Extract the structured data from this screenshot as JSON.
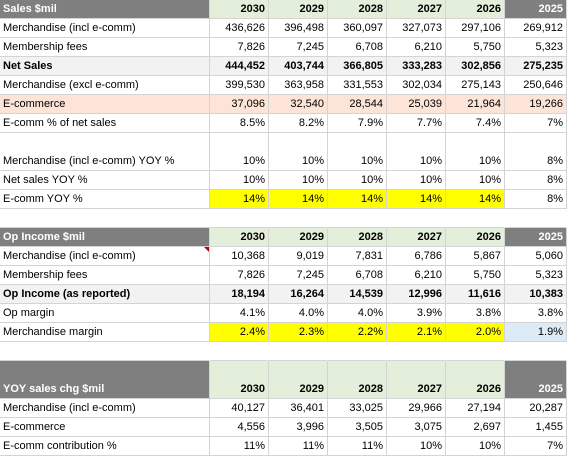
{
  "sales": {
    "header": [
      "Sales $mil",
      "2030",
      "2029",
      "2028",
      "2027",
      "2026",
      "2025"
    ],
    "rows": [
      [
        "Merchandise (incl e-comm)",
        "436,626",
        "396,498",
        "360,097",
        "327,073",
        "297,106",
        "269,912"
      ],
      [
        "Membership fees",
        "7,826",
        "7,245",
        "6,708",
        "6,210",
        "5,750",
        "5,323"
      ],
      [
        "Net Sales",
        "444,452",
        "403,744",
        "366,805",
        "333,283",
        "302,856",
        "275,235"
      ],
      [
        "Merchandise (excl e-comm)",
        "399,530",
        "363,958",
        "331,553",
        "302,034",
        "275,143",
        "250,646"
      ],
      [
        "E-commerce",
        "37,096",
        "32,540",
        "28,544",
        "25,039",
        "21,964",
        "19,266"
      ],
      [
        "E-comm % of net sales",
        "8.5%",
        "8.2%",
        "7.9%",
        "7.7%",
        "7.4%",
        "7%"
      ],
      [
        "Merchandise (incl e-comm) YOY %",
        "10%",
        "10%",
        "10%",
        "10%",
        "10%",
        "8%"
      ],
      [
        "Net sales YOY %",
        "10%",
        "10%",
        "10%",
        "10%",
        "10%",
        "8%"
      ],
      [
        "E-comm YOY %",
        "14%",
        "14%",
        "14%",
        "14%",
        "14%",
        "8%"
      ]
    ]
  },
  "opincome": {
    "header": [
      "Op Income $mil",
      "2030",
      "2029",
      "2028",
      "2027",
      "2026",
      "2025"
    ],
    "rows": [
      [
        "Merchandise (incl e-comm)",
        "10,368",
        "9,019",
        "7,831",
        "6,786",
        "5,867",
        "5,060"
      ],
      [
        "Membership fees",
        "7,826",
        "7,245",
        "6,708",
        "6,210",
        "5,750",
        "5,323"
      ],
      [
        "Op Income (as reported)",
        "18,194",
        "16,264",
        "14,539",
        "12,996",
        "11,616",
        "10,383"
      ],
      [
        "Op margin",
        "4.1%",
        "4.0%",
        "4.0%",
        "3.9%",
        "3.8%",
        "3.8%"
      ],
      [
        "Merchandise margin",
        "2.4%",
        "2.3%",
        "2.2%",
        "2.1%",
        "2.0%",
        "1.9%"
      ]
    ]
  },
  "yoy": {
    "header": [
      "YOY sales chg $mil",
      "2030",
      "2029",
      "2028",
      "2027",
      "2026",
      "2025"
    ],
    "rows": [
      [
        "Merchandise (incl e-comm)",
        "40,127",
        "36,401",
        "33,025",
        "29,966",
        "27,194",
        "20,287"
      ],
      [
        "E-commerce",
        "4,556",
        "3,996",
        "3,505",
        "3,075",
        "2,697",
        "1,455"
      ],
      [
        "E-comm contribution %",
        "11%",
        "11%",
        "11%",
        "10%",
        "10%",
        "7%"
      ]
    ]
  }
}
